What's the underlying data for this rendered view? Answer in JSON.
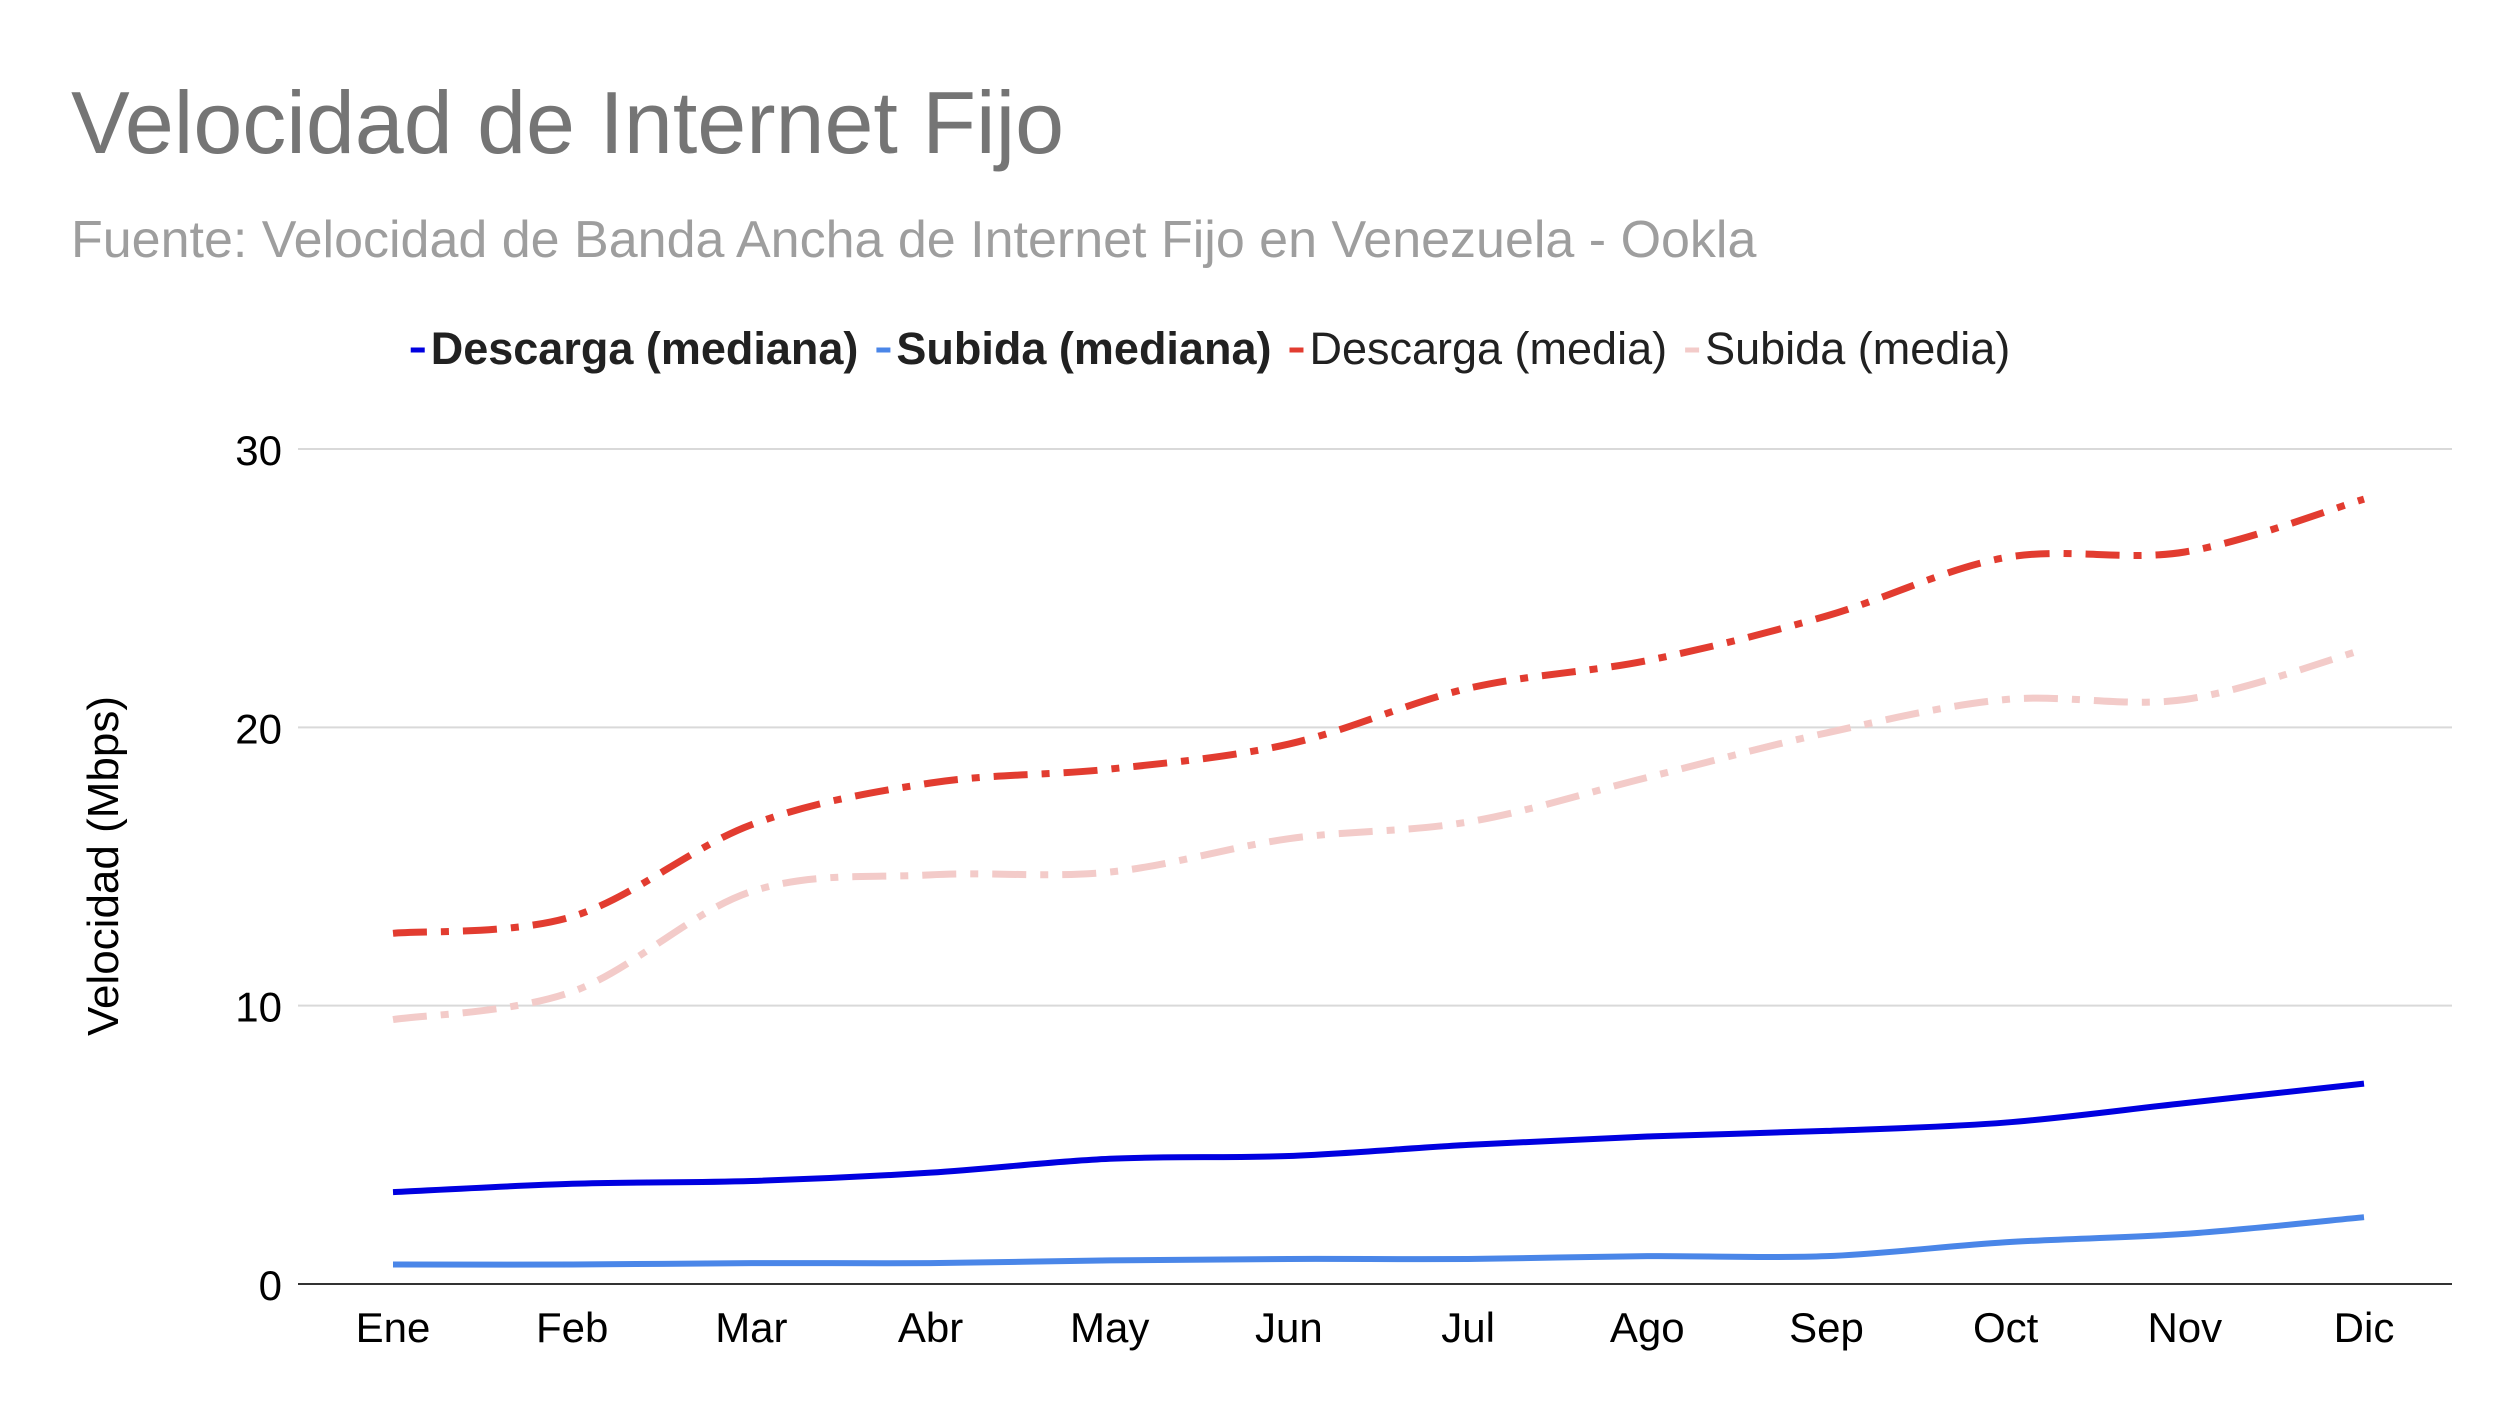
{
  "title": "Velocidad de Internet Fijo",
  "subtitle": "Fuente: Velocidad de Banda Ancha de Internet Fijo en Venezuela - Ookla",
  "chart_data": {
    "type": "line",
    "title": "Velocidad de Internet Fijo",
    "subtitle": "Fuente: Velocidad de Banda Ancha de Internet Fijo en Venezuela - Ookla",
    "xlabel": "",
    "ylabel": "Velocidad (Mbps)",
    "ylim": [
      0,
      30
    ],
    "yticks": [
      0,
      10,
      20,
      30
    ],
    "grid": true,
    "legend": "top",
    "categories": [
      "Ene",
      "Feb",
      "Mar",
      "Abr",
      "May",
      "Jun",
      "Jul",
      "Ago",
      "Sep",
      "Oct",
      "Nov",
      "Dic"
    ],
    "series": [
      {
        "name": "Descarga (mediana)",
        "color": "#0000e0",
        "style": "solid",
        "legend_bold": true,
        "values": [
          3.3,
          3.6,
          3.7,
          4.0,
          4.5,
          4.6,
          5.0,
          5.3,
          5.5,
          5.8,
          6.5,
          7.2
        ]
      },
      {
        "name": "Subida (mediana)",
        "color": "#4a86e8",
        "style": "solid",
        "legend_bold": true,
        "values": [
          0.7,
          0.7,
          0.75,
          0.75,
          0.85,
          0.9,
          0.9,
          1.0,
          1.0,
          1.5,
          1.8,
          2.4
        ]
      },
      {
        "name": "Descarga (media)",
        "color": "#e23c30",
        "style": "dashdot",
        "legend_bold": false,
        "values": [
          12.6,
          13.2,
          16.5,
          18.0,
          18.5,
          19.4,
          21.4,
          22.4,
          24.0,
          26.1,
          26.3,
          28.2
        ]
      },
      {
        "name": "Subida (media)",
        "color": "#f3cbc9",
        "style": "dashdot",
        "legend_bold": false,
        "values": [
          9.5,
          10.5,
          14.1,
          14.7,
          14.8,
          16.0,
          16.6,
          18.2,
          19.8,
          21.0,
          21.0,
          22.8
        ]
      }
    ]
  }
}
